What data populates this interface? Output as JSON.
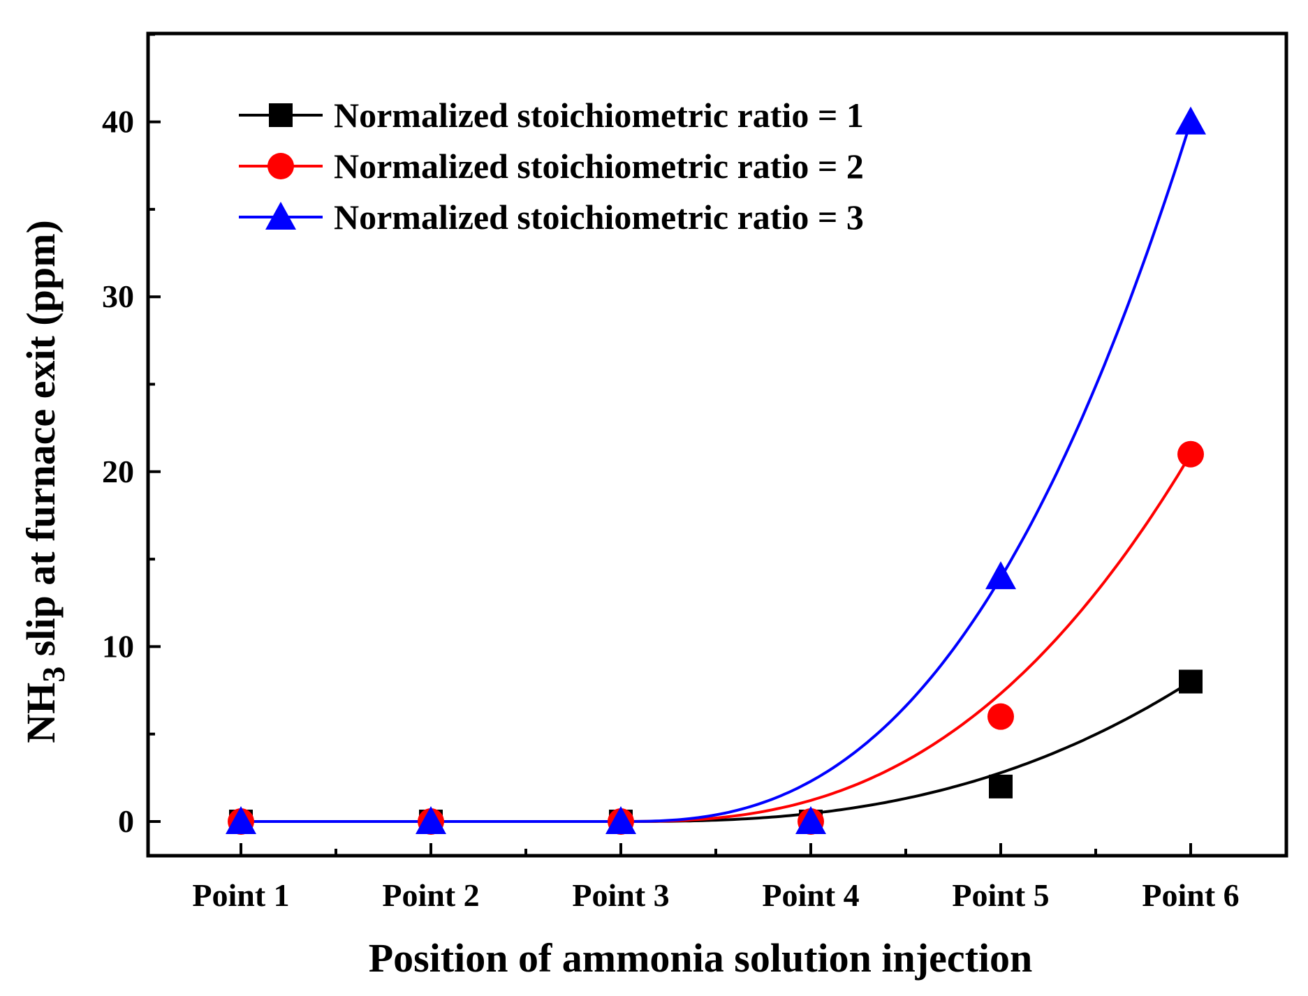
{
  "chart_data": {
    "type": "line",
    "title": "",
    "xlabel": "Position of ammonia solution injection",
    "ylabel": {
      "prefix": "NH",
      "subscript": "3",
      "suffix": " slip at furnace exit (ppm)"
    },
    "categories": [
      "Point 1",
      "Point 2",
      "Point 3",
      "Point 4",
      "Point 5",
      "Point 6"
    ],
    "ylim": [
      -2,
      45
    ],
    "yticks": [
      0,
      10,
      20,
      30,
      40
    ],
    "y_minor_step": 5,
    "grid": false,
    "legend_position": "top-left",
    "series": [
      {
        "name": "Normalized stoichiometric ratio = 1",
        "color": "#000000",
        "marker": "square",
        "values": [
          0,
          0,
          0,
          0,
          2,
          8
        ]
      },
      {
        "name": "Normalized stoichiometric ratio = 2",
        "color": "#ff0000",
        "marker": "circle",
        "values": [
          0,
          0,
          0,
          0,
          6,
          21
        ]
      },
      {
        "name": "Normalized stoichiometric ratio = 3",
        "color": "#0000ff",
        "marker": "triangle",
        "values": [
          0,
          0,
          0,
          0,
          14,
          40
        ]
      }
    ]
  }
}
